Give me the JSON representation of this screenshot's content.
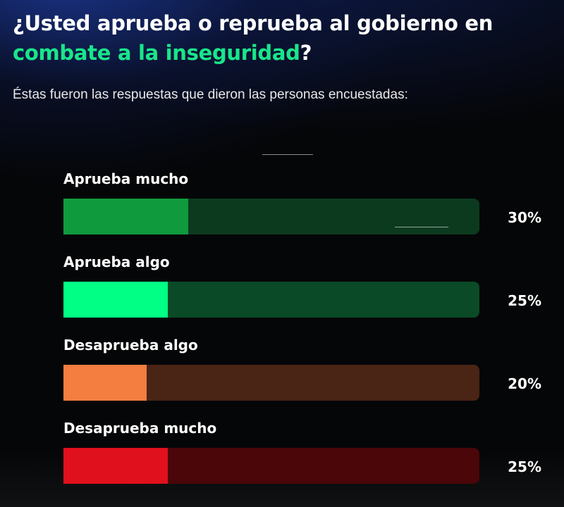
{
  "header": {
    "title_part1": "¿Usted aprueba o reprueba al gobierno en",
    "title_accent": "combate a la inseguridad",
    "title_end": "?",
    "subtitle": "Éstas fueron las respuestas que dieron las personas encuestadas:"
  },
  "colors": {
    "accent": "#19e68a",
    "background": "#050608"
  },
  "chart_data": {
    "type": "bar",
    "orientation": "horizontal",
    "categories": [
      "Aprueba mucho",
      "Aprueba algo",
      "Desaprueba algo",
      "Desaprueba mucho"
    ],
    "values": [
      30,
      25,
      20,
      25
    ],
    "value_labels": [
      "30%",
      "25%",
      "20%",
      "25%"
    ],
    "xlim": [
      0,
      100
    ],
    "grid": false,
    "legend": "none",
    "bar_colors": [
      "#0f9a3e",
      "#00ff84",
      "#f47d40",
      "#e0101c"
    ],
    "track_colors": [
      "#0c3a1f",
      "#0a4a26",
      "#4a2414",
      "#4a0608"
    ]
  }
}
